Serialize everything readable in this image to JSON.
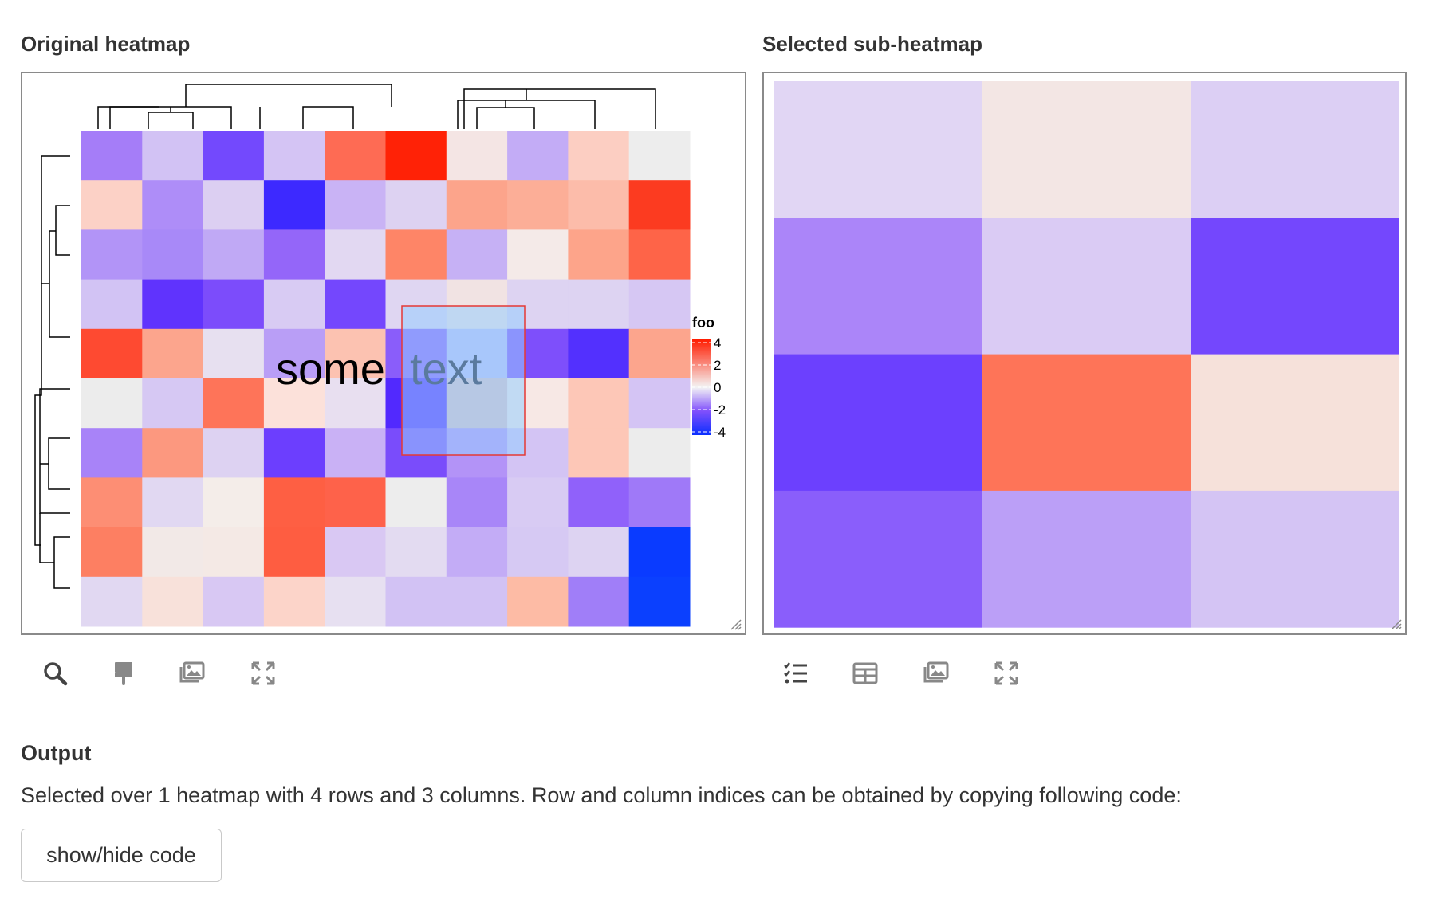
{
  "original": {
    "title": "Original heatmap",
    "overlay_text_1": "some",
    "overlay_text_2": "text",
    "legend": {
      "title": "foo",
      "ticks": [
        "4",
        "2",
        "0",
        "-2",
        "-4"
      ]
    },
    "matrix": [
      [
        "#a57df8",
        "#d2c2f4",
        "#7349fd",
        "#d4c4f4",
        "#fe6b54",
        "#ff2206",
        "#f4e5e4",
        "#c3acf6",
        "#fccec2",
        "#ededed"
      ],
      [
        "#fcd1c6",
        "#ae8df8",
        "#dccff2",
        "#3d29ff",
        "#c9b3f5",
        "#ddd2f2",
        "#fca48b",
        "#fcae97",
        "#fcbcaa",
        "#fc3b20"
      ],
      [
        "#b294f7",
        "#a889f8",
        "#c0a9f5",
        "#9466f9",
        "#e2d8f2",
        "#fe8567",
        "#c6b1f5",
        "#f4eae8",
        "#fda48a",
        "#fe6448"
      ],
      [
        "#d2c3f4",
        "#6033fd",
        "#7c4cfb",
        "#d8cbf3",
        "#7447fd",
        "#dfd6f2",
        "#f1e3e3",
        "#ddd3f2",
        "#ddd3f2",
        "#d6c7f3"
      ],
      [
        "#fe4a31",
        "#fca58d",
        "#e7e0f0",
        "#b99ef6",
        "#fcc2b1",
        "#8a5dfa",
        "#bfbff7",
        "#7e4ffb",
        "#5330fe",
        "#fca58d"
      ],
      [
        "#ececec",
        "#d6c8f3",
        "#fe7459",
        "#fce1da",
        "#e8dff0",
        "#5229fe",
        "#e1c1c4",
        "#f7e8e5",
        "#fdc7b7",
        "#d4c4f4"
      ],
      [
        "#a883f8",
        "#fc987f",
        "#ddd2f2",
        "#6c3efe",
        "#c9b1f5",
        "#7a4cfb",
        "#b393f7",
        "#d3c4f4",
        "#fdc7b7",
        "#ececec"
      ],
      [
        "#fd8e74",
        "#e1d8f2",
        "#f4ede9",
        "#fe5f43",
        "#fe624a",
        "#ededed",
        "#a886f8",
        "#d8cbf3",
        "#9061fa",
        "#9f79f8"
      ],
      [
        "#fd7f62",
        "#f2e9e7",
        "#f4e9e5",
        "#fe5d41",
        "#d9c8f3",
        "#e3dbf1",
        "#c3acf6",
        "#d6c9f3",
        "#ddd3f2",
        "#0a3bff"
      ],
      [
        "#e1d8f2",
        "#f8e1da",
        "#d8c8f3",
        "#fcd4c9",
        "#e7e0f1",
        "#d2c2f4",
        "#d2c2f4",
        "#fdbba5",
        "#a07ef8",
        "#0b40fe"
      ]
    ]
  },
  "sub": {
    "title": "Selected sub-heatmap",
    "matrix": [
      [
        "#e1d6f4",
        "#f3e6e4",
        "#dccff4"
      ],
      [
        "#ab85f9",
        "#dacbf4",
        "#7447fd"
      ],
      [
        "#6c40fe",
        "#fe7458",
        "#f6e1da"
      ],
      [
        "#8a5efb",
        "#bb9ff7",
        "#d4c4f4"
      ]
    ]
  },
  "icons_left": [
    "search-icon",
    "brush-icon",
    "images-icon",
    "expand-icon"
  ],
  "icons_right": [
    "checklist-icon",
    "table-icon",
    "images-icon",
    "expand-icon"
  ],
  "output": {
    "title": "Output",
    "text": "Selected over 1 heatmap with 4 rows and 3 columns. Row and column indices can be obtained by copying following code:",
    "button_label": "show/hide code"
  }
}
